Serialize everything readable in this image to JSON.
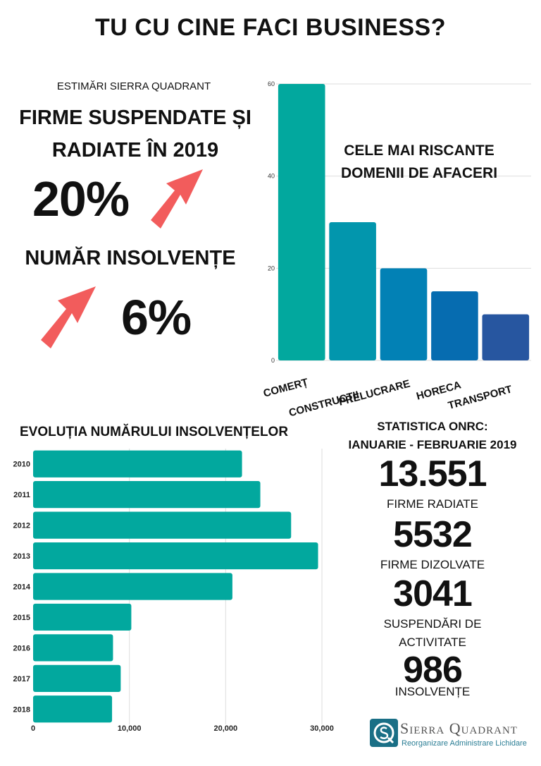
{
  "title": "TU CU CINE FACI BUSINESS?",
  "estimates": {
    "source": "ESTIMĂRI SIERRA QUADRANT",
    "headline_line1": "FIRME SUSPENDATE ȘI",
    "headline_line2": "RADIATE ÎN 2019",
    "pct1": "20%",
    "headline2": "NUMĂR INSOLVENȚE",
    "pct2": "6%"
  },
  "onrc": {
    "title_line1": "STATISTICA ONRC:",
    "title_line2": "IANUARIE - FEBRUARIE 2019",
    "stats": [
      {
        "value": "13.551",
        "label_line1": "FIRME RADIATE",
        "label_line2": ""
      },
      {
        "value": "5532",
        "label_line1": "FIRME DIZOLVATE",
        "label_line2": ""
      },
      {
        "value": "3041",
        "label_line1": "SUSPENDĂRI DE",
        "label_line2": "ACTIVITATE"
      },
      {
        "value": "986",
        "label_line1": "INSOLVENȚE",
        "label_line2": ""
      }
    ]
  },
  "logo": {
    "name": "Sierra Quadrant",
    "tagline": "Reorganizare Administrare Lichidare"
  },
  "colors": {
    "arrow": "#f25c5c",
    "teal": "#02a89e",
    "bars": [
      "#02a89e",
      "#0296ad",
      "#0281b5",
      "#066cb0",
      "#2756a0"
    ],
    "logo_teal": "#1a6f86"
  },
  "icons": [
    "arrow-up-right-icon",
    "arrow-up-right-icon",
    "sierra-quadrant-logo-icon"
  ],
  "chart_data": [
    {
      "type": "bar",
      "title": "CELE MAI RISCANTE DOMENII DE AFACERI",
      "title_line1": "CELE MAI RISCANTE",
      "title_line2": "DOMENII DE AFACERI",
      "categories": [
        "COMERȚ",
        "CONSTRUCȚII",
        "PRELUCRARE",
        "HORECA",
        "TRANSPORT"
      ],
      "values": [
        60,
        30,
        20,
        15,
        10
      ],
      "ylim": [
        0,
        60
      ],
      "yticks": [
        0,
        20,
        40,
        60
      ],
      "grid": true
    },
    {
      "type": "bar",
      "orientation": "horizontal",
      "title": "EVOLUȚIA NUMĂRULUI INSOLVENȚELOR",
      "categories": [
        "2010",
        "2011",
        "2012",
        "2013",
        "2014",
        "2015",
        "2016",
        "2017",
        "2018"
      ],
      "values": [
        21700,
        23600,
        26800,
        29600,
        20700,
        10200,
        8300,
        9100,
        8200
      ],
      "xlim": [
        0,
        30000
      ],
      "xticks": [
        0,
        10000,
        20000,
        30000
      ],
      "xtick_labels": [
        "0",
        "10,000",
        "20,000",
        "30,000"
      ],
      "grid": true
    }
  ]
}
